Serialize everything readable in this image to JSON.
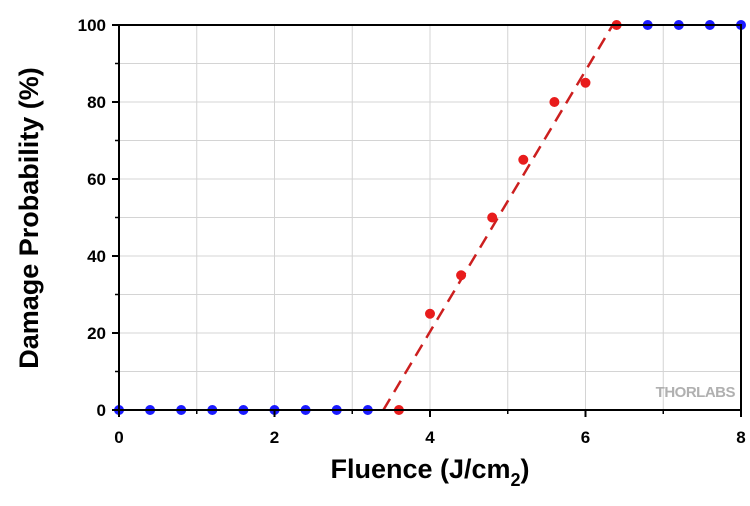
{
  "chart_data": {
    "type": "scatter",
    "title": "",
    "xlabel": "Fluence (J/cm",
    "xlabel_subscript": "2",
    "xlabel_suffix": ")",
    "ylabel": "Damage Probability (%)",
    "xlim": [
      0,
      8
    ],
    "ylim": [
      0,
      100
    ],
    "x_ticks": [
      0,
      2,
      4,
      6,
      8
    ],
    "y_ticks": [
      0,
      20,
      40,
      60,
      80,
      100
    ],
    "x_tick_labels": [
      "0",
      "2",
      "4",
      "6",
      "8"
    ],
    "y_tick_labels": [
      "0",
      "20",
      "40",
      "60",
      "80",
      "100"
    ],
    "x_minor_step": 0.4,
    "y_minor_step": 10,
    "grid": true,
    "series": [
      {
        "color": "#1a1aff",
        "points": [
          [
            0,
            0
          ],
          [
            0.4,
            0
          ],
          [
            0.8,
            0
          ],
          [
            1.2,
            0
          ],
          [
            1.6,
            0
          ],
          [
            2.0,
            0
          ],
          [
            2.4,
            0
          ],
          [
            2.8,
            0
          ],
          [
            3.2,
            0
          ],
          [
            6.8,
            100
          ],
          [
            7.2,
            100
          ],
          [
            7.6,
            100
          ],
          [
            8.0,
            100
          ]
        ]
      },
      {
        "color": "#e81c1c",
        "points": [
          [
            3.6,
            0
          ],
          [
            4.0,
            25
          ],
          [
            4.4,
            35
          ],
          [
            4.8,
            50
          ],
          [
            5.2,
            65
          ],
          [
            5.6,
            80
          ],
          [
            6.0,
            85
          ],
          [
            6.4,
            100
          ]
        ]
      }
    ],
    "fit_line": {
      "color": "#cc1f1f",
      "style": "dashed",
      "points": [
        [
          3.4,
          0
        ],
        [
          6.35,
          100
        ]
      ]
    },
    "watermark": "THORLABS"
  }
}
